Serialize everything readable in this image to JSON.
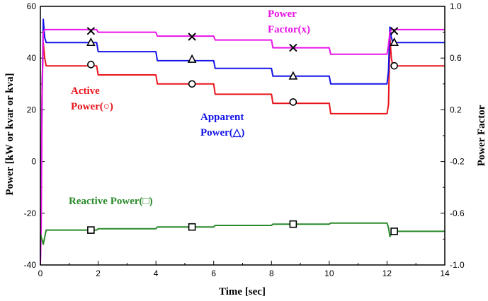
{
  "chart_data": {
    "type": "line",
    "title": "",
    "xlabel": "Time [sec]",
    "ylabel_left": "Power [kW or kvar or kva]",
    "ylabel_right": "Power Factor",
    "xlim": [
      0,
      14
    ],
    "ylim_left": [
      -40,
      60
    ],
    "ylim_right": [
      -1.0,
      1.0
    ],
    "x_ticks": [
      0,
      2,
      4,
      6,
      8,
      10,
      12,
      14
    ],
    "y_ticks_left": [
      -40,
      -20,
      0,
      20,
      40,
      60
    ],
    "y_ticks_right": [
      -1.0,
      -0.6,
      -0.2,
      0.2,
      0.6,
      1.0
    ],
    "y_tick_labels_right": [
      "-1.0",
      "-0.6",
      "-0.2",
      "0.2",
      "0.6",
      "1.0"
    ],
    "grid": false,
    "series": [
      {
        "name": "Active Power(○)",
        "label_lines": [
          "Active",
          "Power(○)"
        ],
        "axis": "left",
        "color": "#e8141b",
        "marker": "circle",
        "points": [
          [
            0.0,
            -38
          ],
          [
            0.03,
            -10
          ],
          [
            0.06,
            30
          ],
          [
            0.1,
            46
          ],
          [
            0.15,
            40
          ],
          [
            0.2,
            37
          ],
          [
            1.95,
            37
          ],
          [
            2.0,
            33.5
          ],
          [
            4.0,
            33.5
          ],
          [
            4.05,
            30
          ],
          [
            6.0,
            30
          ],
          [
            6.05,
            26
          ],
          [
            8.0,
            26
          ],
          [
            8.05,
            22.5
          ],
          [
            10.0,
            22.5
          ],
          [
            10.05,
            18.5
          ],
          [
            12.0,
            18.5
          ],
          [
            12.05,
            22
          ],
          [
            12.1,
            48
          ],
          [
            12.15,
            40
          ],
          [
            12.2,
            37
          ],
          [
            14.0,
            37
          ]
        ],
        "markers_x": [
          1.75,
          5.25,
          8.75,
          12.25
        ],
        "markers_y": [
          37.5,
          30,
          23,
          37
        ]
      },
      {
        "name": "Apparent Power(△)",
        "label_lines": [
          "Apparent",
          "Power(△)"
        ],
        "axis": "left",
        "color": "#1414e8",
        "marker": "triangle",
        "points": [
          [
            0.0,
            -38
          ],
          [
            0.03,
            -10
          ],
          [
            0.06,
            25
          ],
          [
            0.1,
            55
          ],
          [
            0.15,
            48
          ],
          [
            0.2,
            46
          ],
          [
            1.95,
            46
          ],
          [
            2.0,
            42.5
          ],
          [
            4.0,
            42.5
          ],
          [
            4.05,
            39
          ],
          [
            6.0,
            39
          ],
          [
            6.05,
            36
          ],
          [
            8.0,
            36
          ],
          [
            8.05,
            33
          ],
          [
            10.0,
            33
          ],
          [
            10.05,
            30
          ],
          [
            12.0,
            30
          ],
          [
            12.05,
            35
          ],
          [
            12.1,
            52
          ],
          [
            12.15,
            48
          ],
          [
            12.2,
            46
          ],
          [
            14.0,
            46
          ]
        ],
        "markers_x": [
          1.75,
          5.25,
          8.75,
          12.25
        ],
        "markers_y": [
          46,
          39.5,
          33,
          46
        ]
      },
      {
        "name": "Power Factor(x)",
        "label_lines": [
          "Power",
          "Factor(x)"
        ],
        "axis": "right",
        "color": "#e814e8",
        "marker": "x",
        "points": [
          [
            0.0,
            -1.0
          ],
          [
            0.03,
            -0.7
          ],
          [
            0.06,
            0.3
          ],
          [
            0.1,
            0.8
          ],
          [
            0.15,
            0.82
          ],
          [
            1.95,
            0.82
          ],
          [
            2.0,
            0.8
          ],
          [
            4.0,
            0.8
          ],
          [
            4.05,
            0.77
          ],
          [
            6.0,
            0.77
          ],
          [
            6.05,
            0.74
          ],
          [
            8.0,
            0.74
          ],
          [
            8.05,
            0.68
          ],
          [
            10.0,
            0.68
          ],
          [
            10.05,
            0.63
          ],
          [
            12.0,
            0.63
          ],
          [
            12.05,
            0.7
          ],
          [
            12.1,
            0.8
          ],
          [
            12.15,
            0.82
          ],
          [
            14.0,
            0.82
          ]
        ],
        "markers_x": [
          1.75,
          5.25,
          8.75,
          12.25
        ],
        "markers_y": [
          0.81,
          0.765,
          0.68,
          0.81
        ]
      },
      {
        "name": "Reactive Power(□)",
        "label_lines": [
          "Reactive Power(□)"
        ],
        "axis": "left",
        "color": "#2a8a2a",
        "marker": "square",
        "points": [
          [
            0.0,
            -28
          ],
          [
            0.1,
            -32
          ],
          [
            0.2,
            -26.5
          ],
          [
            1.95,
            -26.5
          ],
          [
            2.0,
            -26
          ],
          [
            4.0,
            -26
          ],
          [
            4.05,
            -25.3
          ],
          [
            6.0,
            -25.3
          ],
          [
            6.05,
            -24.7
          ],
          [
            8.0,
            -24.7
          ],
          [
            8.05,
            -24.2
          ],
          [
            10.0,
            -24.2
          ],
          [
            10.05,
            -23.8
          ],
          [
            12.0,
            -23.8
          ],
          [
            12.05,
            -25.5
          ],
          [
            12.1,
            -29
          ],
          [
            12.2,
            -27
          ],
          [
            14.0,
            -27
          ]
        ],
        "markers_x": [
          1.75,
          5.25,
          8.75,
          12.25
        ],
        "markers_y": [
          -26.5,
          -25.3,
          -24.2,
          -27
        ]
      }
    ]
  }
}
